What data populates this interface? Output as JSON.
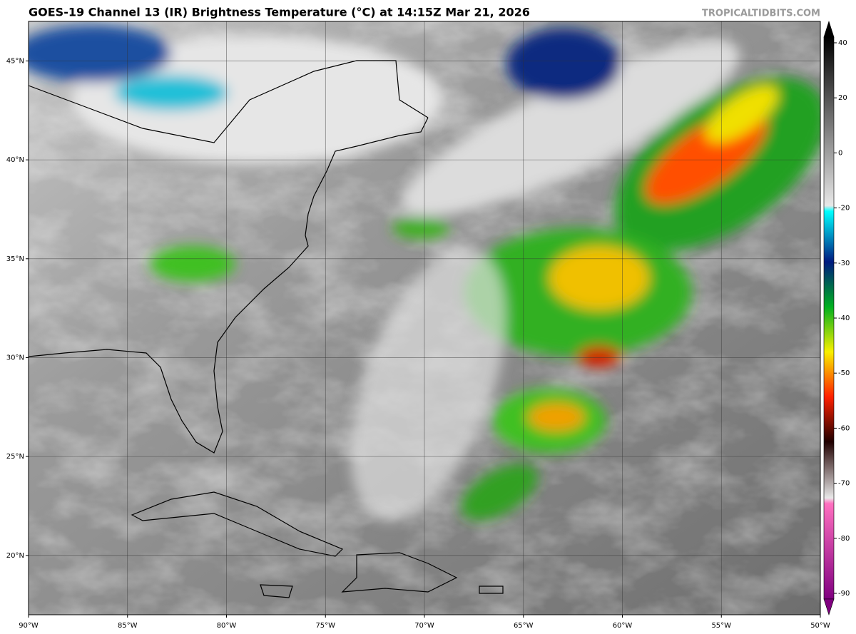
{
  "header": {
    "title": "GOES-19 Channel 13 (IR) Brightness Temperature (°C) at 14:15Z Mar 21, 2026",
    "watermark": "TROPICALTIDBITS.COM"
  },
  "map": {
    "lonlim": [
      -90,
      -50
    ],
    "latlim": [
      17,
      47
    ],
    "lon_ticks": [
      {
        "value": -90,
        "label": "90°W"
      },
      {
        "value": -85,
        "label": "85°W"
      },
      {
        "value": -80,
        "label": "80°W"
      },
      {
        "value": -75,
        "label": "75°W"
      },
      {
        "value": -70,
        "label": "70°W"
      },
      {
        "value": -65,
        "label": "65°W"
      },
      {
        "value": -60,
        "label": "60°W"
      },
      {
        "value": -55,
        "label": "55°W"
      },
      {
        "value": -50,
        "label": "50°W"
      }
    ],
    "lat_ticks": [
      {
        "value": 20,
        "label": "20°N"
      },
      {
        "value": 25,
        "label": "25°N"
      },
      {
        "value": 30,
        "label": "30°N"
      },
      {
        "value": 35,
        "label": "35°N"
      },
      {
        "value": 40,
        "label": "40°N"
      },
      {
        "value": 45,
        "label": "45°N"
      }
    ],
    "grid": true
  },
  "colorbar": {
    "ticks": [
      40,
      20,
      0,
      -20,
      -30,
      -40,
      -50,
      -60,
      -70,
      -80,
      -90
    ]
  }
}
